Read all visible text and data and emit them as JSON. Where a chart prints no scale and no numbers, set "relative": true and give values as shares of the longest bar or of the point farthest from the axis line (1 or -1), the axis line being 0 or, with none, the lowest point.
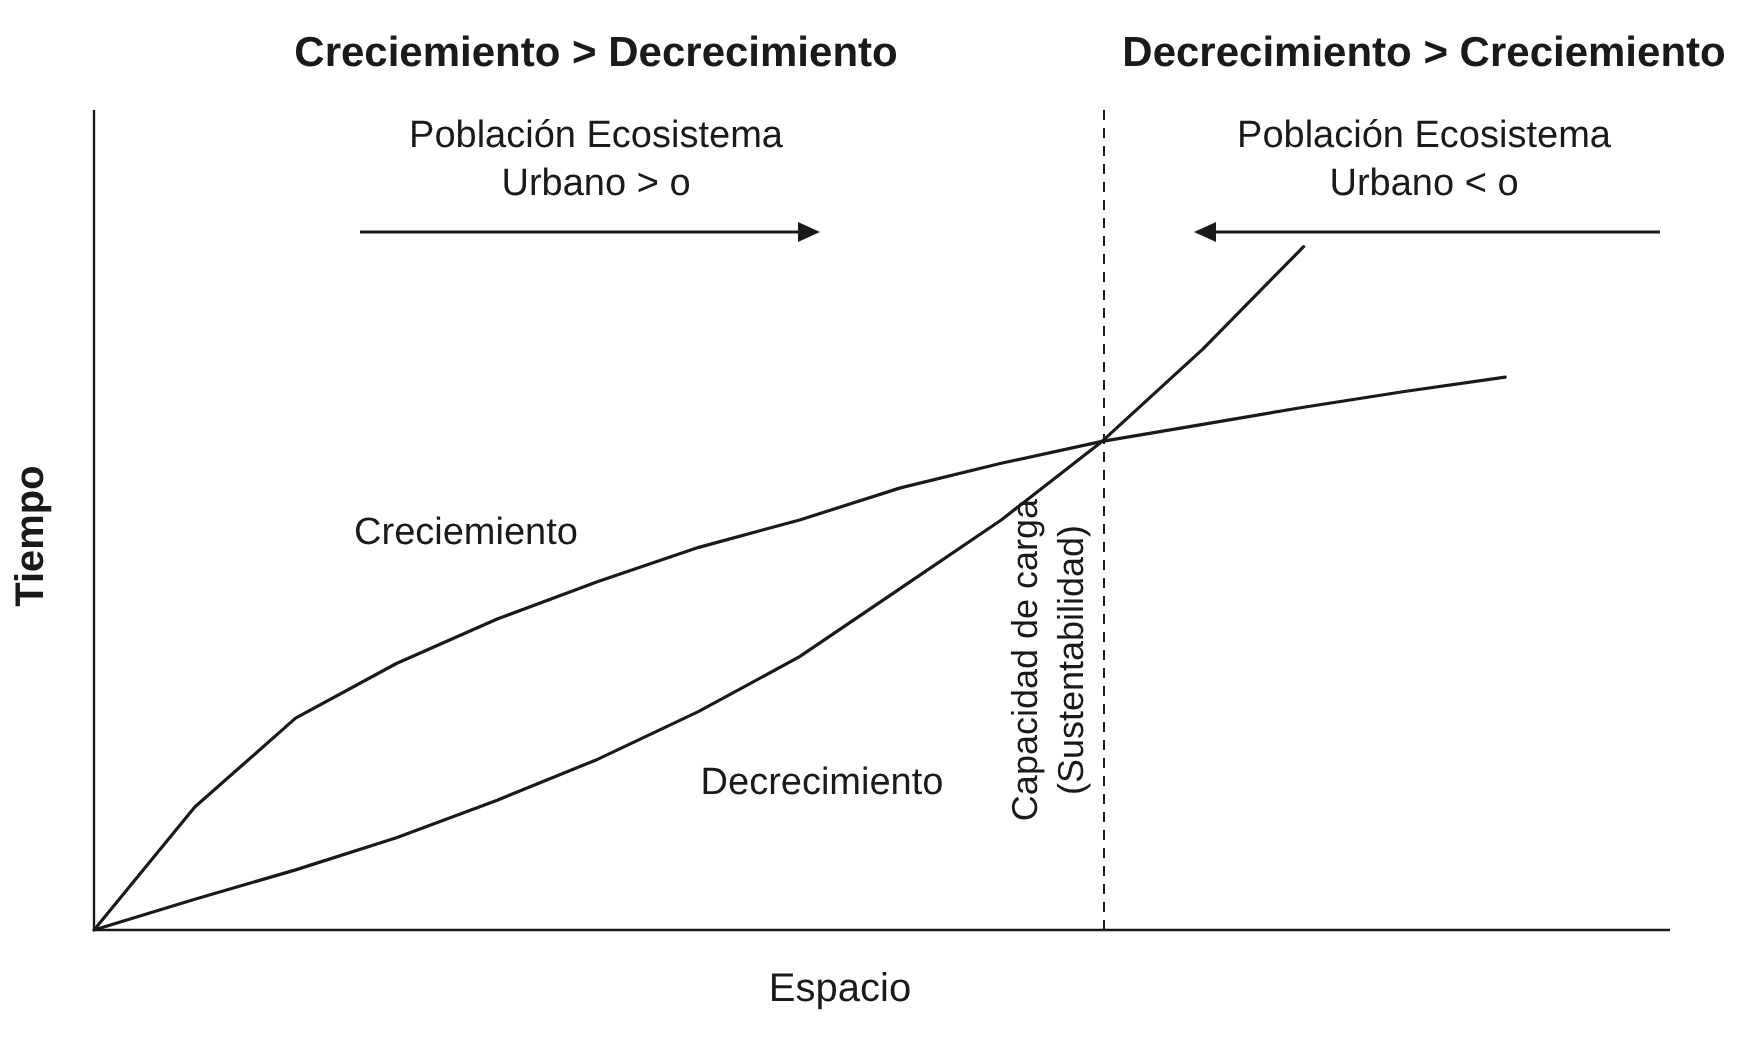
{
  "chart_data": {
    "type": "line",
    "relative": true,
    "xlabel": "Espacio",
    "ylabel": "Tiempo",
    "marker": "none",
    "categories": [
      null,
      null,
      null,
      null,
      null,
      null,
      null,
      null,
      null,
      null,
      null,
      null,
      null,
      null,
      null,
      null
    ],
    "series": [
      {
        "name": "Creciemiento",
        "color": "#1a1a1a",
        "values": [
          0,
          0.18,
          0.31,
          0.39,
          0.455,
          0.51,
          0.56,
          0.6,
          0.647,
          0.683,
          0.715,
          0.74,
          0.765,
          0.788,
          0.809,
          null
        ]
      },
      {
        "name": "Decrecimiento",
        "color": "#1a1a1a",
        "values": [
          0,
          0.045,
          0.088,
          0.135,
          0.19,
          0.25,
          0.32,
          0.4,
          0.5,
          0.6,
          0.715,
          0.85,
          1,
          null,
          null,
          null
        ]
      }
    ],
    "annotations": [
      "Creciemiento > Decrecimiento",
      "Población Ecosistema Urbano > o",
      "Decrecimiento > Creciemiento",
      "Población Ecosistema Urbano < o",
      "Capacidad de carga (Sustentabilidad)"
    ]
  }
}
